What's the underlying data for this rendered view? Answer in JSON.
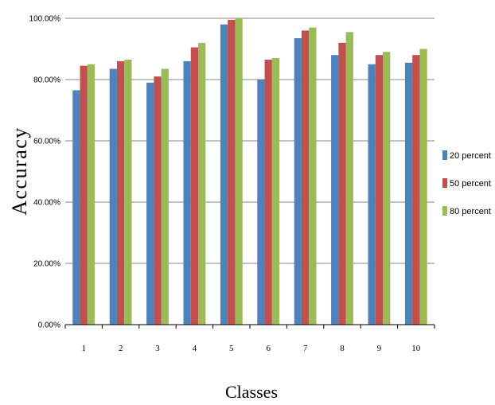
{
  "chart_data": {
    "type": "bar",
    "xlabel": "Classes",
    "ylabel": "Accuracy",
    "categories": [
      "1",
      "2",
      "3",
      "4",
      "5",
      "6",
      "7",
      "8",
      "9",
      "10"
    ],
    "y_ticks": [
      "0.00%",
      "20.00%",
      "40.00%",
      "60.00%",
      "80.00%",
      "100.00%"
    ],
    "ylim": [
      0,
      100
    ],
    "grid": true,
    "legend_position": "right",
    "series": [
      {
        "name": "20 percent",
        "color": "#4f81bd",
        "values": [
          76.5,
          83.5,
          79,
          86,
          98,
          80,
          93.5,
          88,
          85,
          85.5
        ]
      },
      {
        "name": "50 percent",
        "color": "#c0504d",
        "values": [
          84.5,
          86,
          81,
          90.5,
          99.5,
          86.5,
          96,
          92,
          88,
          88
        ]
      },
      {
        "name": "80 percent",
        "color": "#9bbb59",
        "values": [
          85,
          86.5,
          83.5,
          92,
          100,
          87,
          97,
          95.5,
          89,
          90
        ]
      }
    ]
  }
}
